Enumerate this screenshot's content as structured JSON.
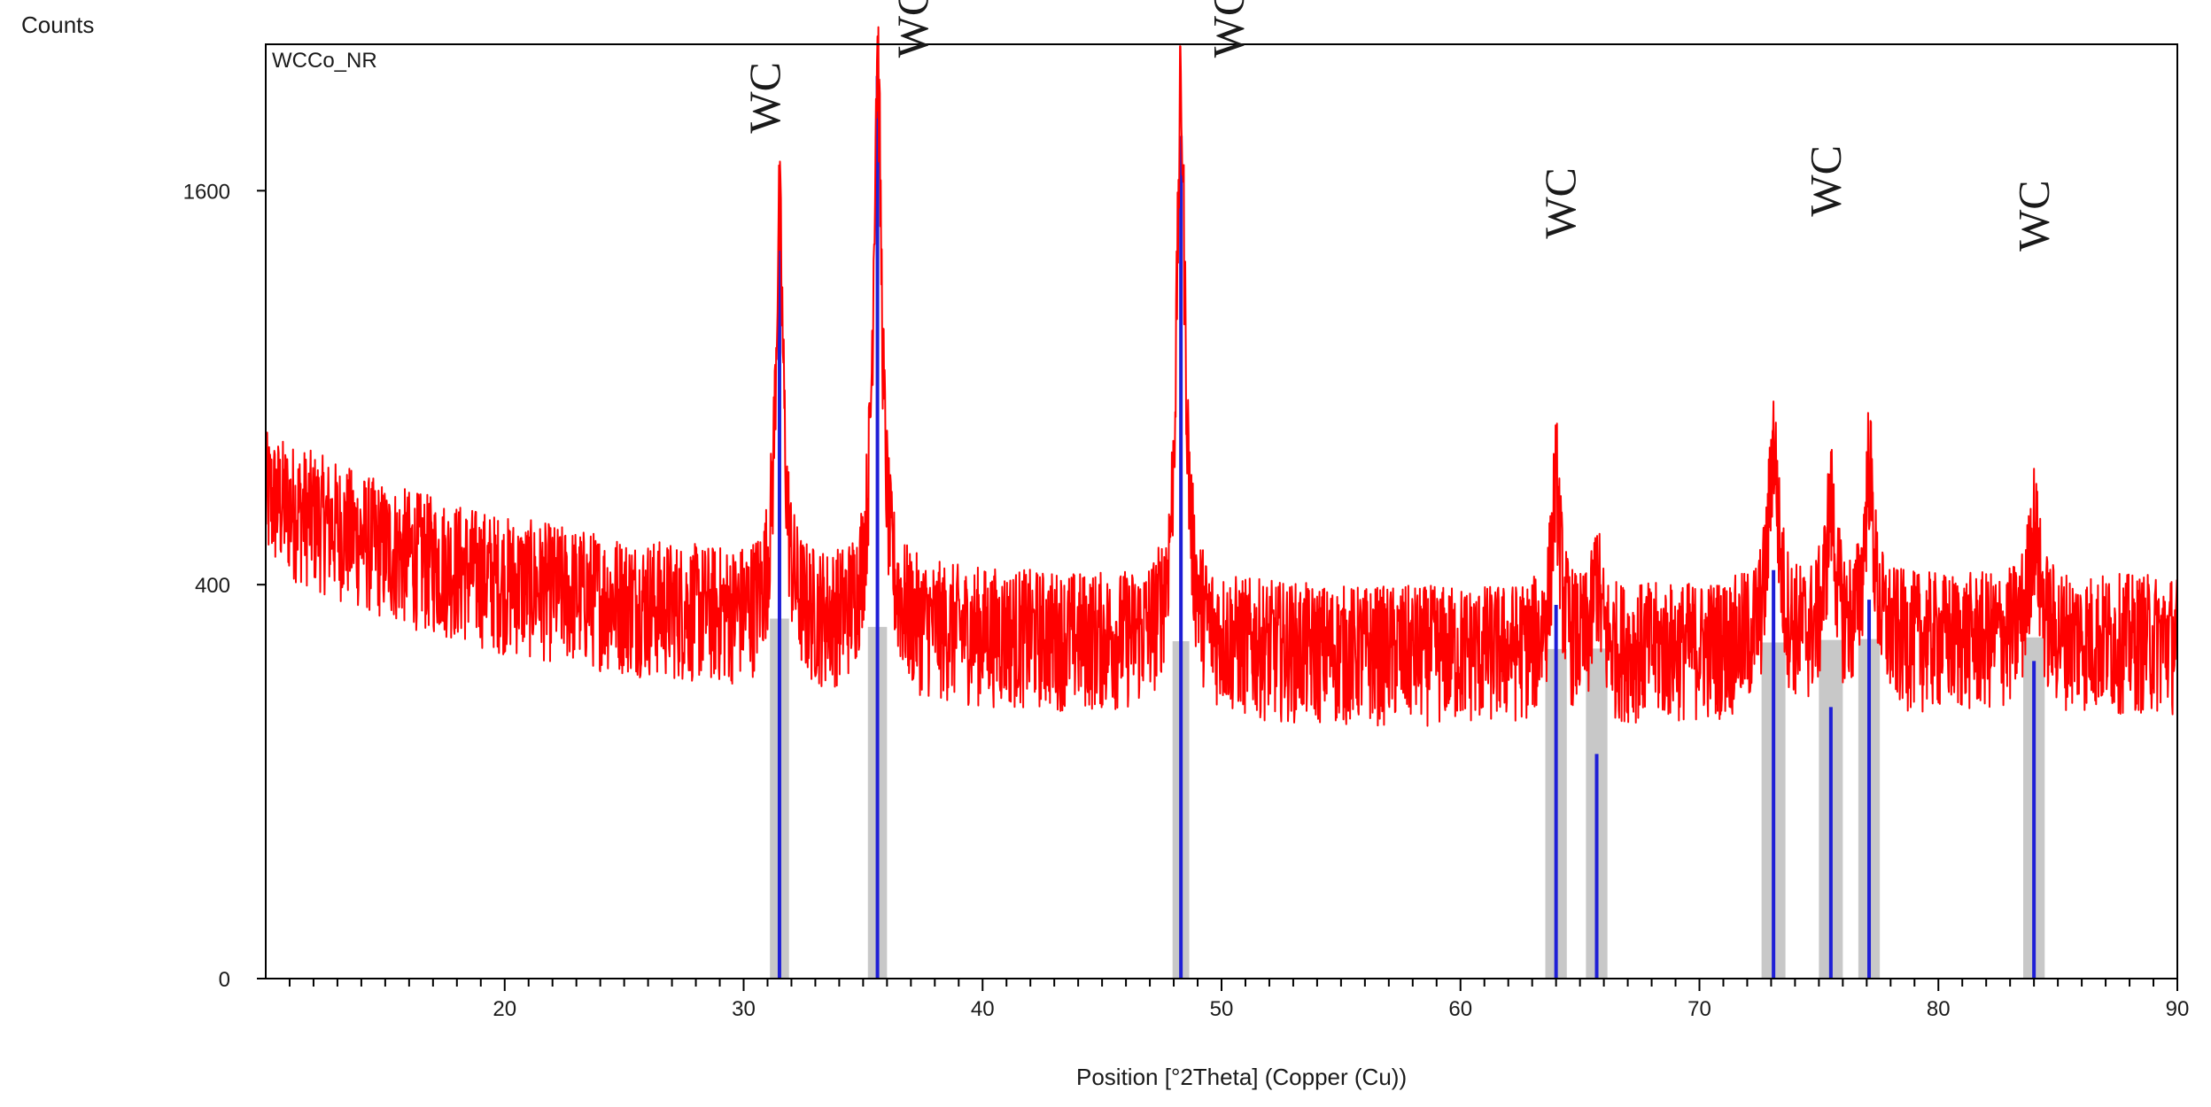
{
  "chart_data": {
    "type": "line",
    "title": "",
    "sample_name": "WCCo_NR",
    "xlabel": "Position [°2Theta] (Copper (Cu))",
    "ylabel": "Counts",
    "xlim": [
      10,
      90
    ],
    "ylim": [
      0,
      2250
    ],
    "y_scale": "sqrt",
    "x_ticks": [
      20,
      30,
      40,
      50,
      60,
      70,
      80,
      90
    ],
    "y_ticks": [
      0,
      400,
      1600
    ],
    "grid": false,
    "colors": {
      "pattern": "#ff0000",
      "reference": "#1f1fd6",
      "peak_fill": "#c8c8c8",
      "frame": "#000000"
    },
    "series": [
      {
        "name": "",
        "kind": "xrd-pattern",
        "background": {
          "x": [
            10,
            15,
            20,
            25,
            30,
            35,
            40,
            45,
            50,
            55,
            60,
            65,
            70,
            75,
            80,
            85,
            90
          ],
          "y": [
            600,
            480,
            410,
            370,
            340,
            320,
            310,
            300,
            290,
            280,
            280,
            280,
            285,
            295,
            300,
            300,
            300
          ]
        },
        "peaks": [
          {
            "position": 31.5,
            "intensity": 1480,
            "fwhm": 0.35
          },
          {
            "position": 35.6,
            "intensity": 2200,
            "fwhm": 0.35
          },
          {
            "position": 48.3,
            "intensity": 2020,
            "fwhm": 0.35
          },
          {
            "position": 64.0,
            "intensity": 640,
            "fwhm": 0.4
          },
          {
            "position": 65.7,
            "intensity": 420,
            "fwhm": 0.35
          },
          {
            "position": 73.1,
            "intensity": 740,
            "fwhm": 0.45
          },
          {
            "position": 75.5,
            "intensity": 570,
            "fwhm": 0.45
          },
          {
            "position": 77.1,
            "intensity": 680,
            "fwhm": 0.4
          },
          {
            "position": 84.0,
            "intensity": 530,
            "fwhm": 0.5
          }
        ]
      },
      {
        "name": "",
        "kind": "reference-sticks",
        "x": [
          31.5,
          35.6,
          48.3,
          64.0,
          65.7,
          73.1,
          75.5,
          77.1,
          84.0
        ],
        "y": [
          1420,
          2100,
          1830,
          360,
          130,
          430,
          190,
          370,
          260
        ],
        "fill_half_width": [
          0.4,
          0.4,
          0.35,
          0.45,
          0.45,
          0.5,
          0.5,
          0.45,
          0.45
        ]
      }
    ],
    "annotations": [
      {
        "text": "WC",
        "x": 31.5,
        "y": 2000
      },
      {
        "text": "WC",
        "x": 37.7,
        "y": 2570
      },
      {
        "text": "WC",
        "x": 50.9,
        "y": 2570
      },
      {
        "text": "WC",
        "x": 64.8,
        "y": 1550
      },
      {
        "text": "WC",
        "x": 75.9,
        "y": 1640
      },
      {
        "text": "WC",
        "x": 84.6,
        "y": 1500
      }
    ]
  }
}
